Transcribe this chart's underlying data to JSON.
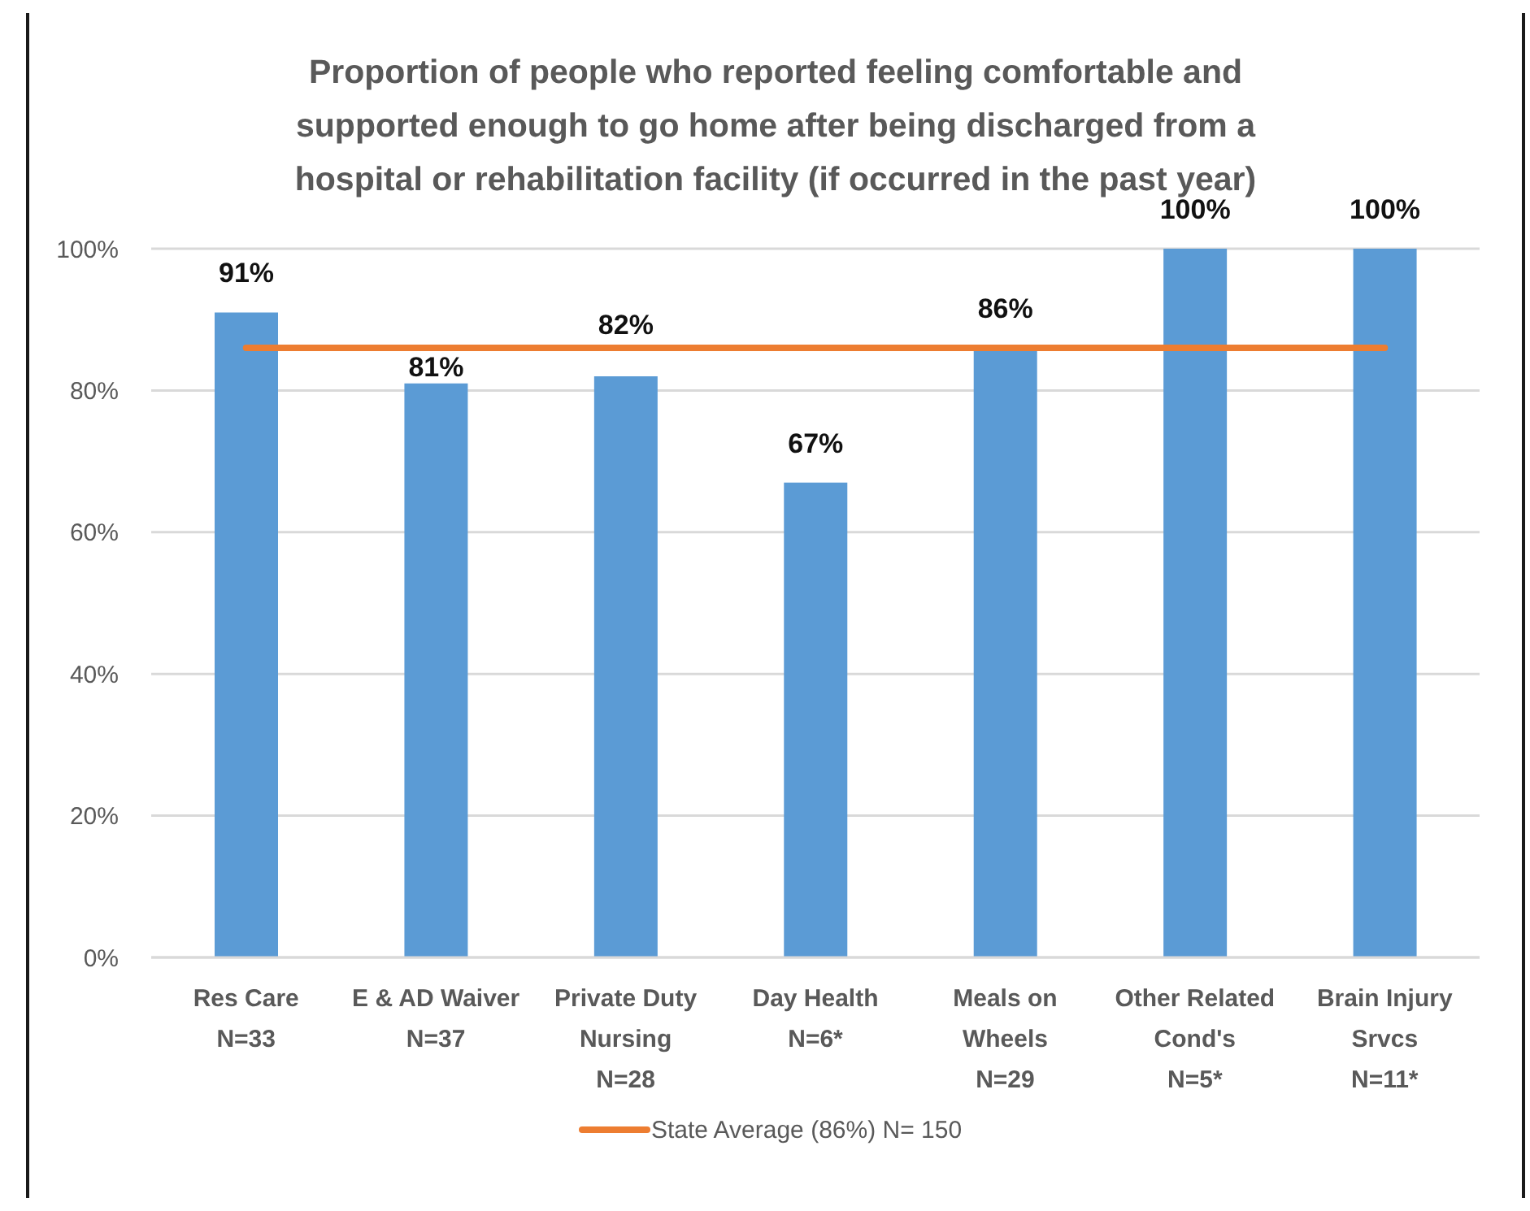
{
  "chart_data": {
    "type": "bar",
    "title": "Proportion of people who reported feeling comfortable and supported enough to go home after being discharged from a hospital or rehabilitation facility (if occurred in the past year)",
    "categories": [
      "Res Care\nN=33",
      "E & AD Waiver\nN=37",
      "Private Duty Nursing\nN=28",
      "Day Health\nN=6*",
      "Meals on Wheels\nN=29",
      "Other Related Cond's\nN=5*",
      "Brain Injury Srvcs\nN=11*"
    ],
    "series": [
      {
        "type": "bar",
        "color": "#5b9bd5",
        "values": [
          91,
          81,
          82,
          67,
          86,
          100,
          100
        ],
        "value_labels": [
          "91%",
          "81%",
          "82%",
          "67%",
          "86%",
          "100%",
          "100%"
        ]
      },
      {
        "type": "line",
        "name": "State Average (86%) N= 150",
        "color": "#ed7d31",
        "values": [
          86,
          86,
          86,
          86,
          86,
          86,
          86
        ]
      }
    ],
    "ylim": [
      0,
      100
    ],
    "yticks": [
      {
        "value": 0,
        "label": "0%"
      },
      {
        "value": 20,
        "label": "20%"
      },
      {
        "value": 40,
        "label": "40%"
      },
      {
        "value": 60,
        "label": "60%"
      },
      {
        "value": 80,
        "label": "80%"
      },
      {
        "value": 100,
        "label": "100%"
      }
    ],
    "grid": "y",
    "legend": "bottom"
  }
}
